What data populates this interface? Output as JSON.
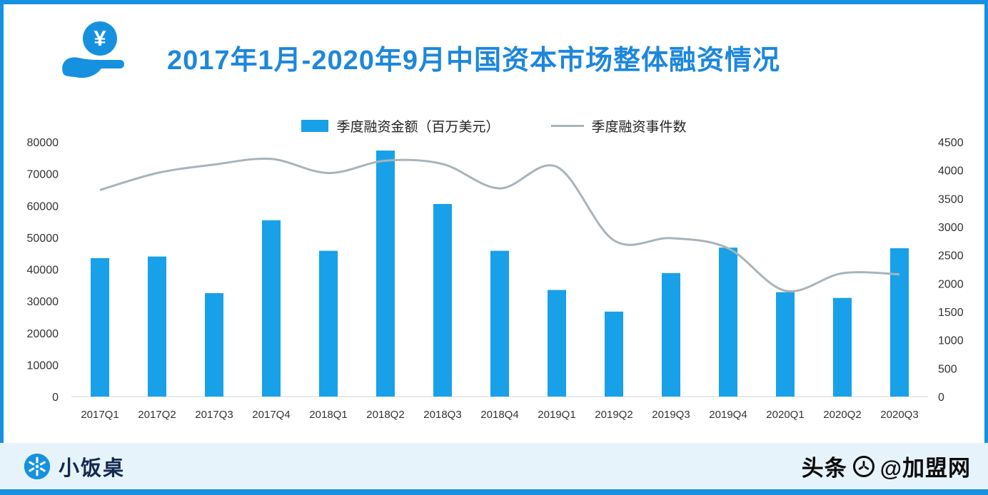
{
  "theme": {
    "accent": "#1691DF",
    "title_color": "#1C87DC",
    "bar_color": "#18A1E8",
    "line_color": "#A9B3BA",
    "footer_bg": "#E7F3FB"
  },
  "header": {
    "title": "2017年1月-2020年9月中国资本市场整体融资情况"
  },
  "legend": {
    "amount_label": "季度融资金额（百万美元）",
    "events_label": "季度融资事件数"
  },
  "chart_data": {
    "type": "combo",
    "title": "2017年1月-2020年9月中国资本市场整体融资情况",
    "categories": [
      "2017Q1",
      "2017Q2",
      "2017Q3",
      "2017Q4",
      "2018Q1",
      "2018Q2",
      "2018Q3",
      "2018Q4",
      "2019Q1",
      "2019Q2",
      "2019Q3",
      "2019Q4",
      "2020Q1",
      "2020Q2",
      "2020Q3"
    ],
    "series": [
      {
        "name": "季度融资金额（百万美元）",
        "type": "bar",
        "axis": "left",
        "color": "#18A1E8",
        "values": [
          43500,
          44000,
          32500,
          55400,
          45800,
          77300,
          60500,
          45800,
          33500,
          26700,
          38800,
          46800,
          32800,
          31000,
          46600
        ]
      },
      {
        "name": "季度融资事件数",
        "type": "line",
        "axis": "right",
        "color": "#A9B3BA",
        "values": [
          3650,
          3950,
          4100,
          4200,
          3950,
          4170,
          4110,
          3680,
          4060,
          2760,
          2800,
          2620,
          1870,
          2180,
          2160
        ]
      }
    ],
    "left_axis": {
      "min": 0,
      "max": 80000,
      "step": 10000
    },
    "right_axis": {
      "min": 0,
      "max": 4500,
      "step": 500
    },
    "grid": false,
    "legend_position": "top"
  },
  "footer": {
    "brand": "小饭桌",
    "watermark_prefix": "头条",
    "watermark_suffix": "@加盟网"
  }
}
